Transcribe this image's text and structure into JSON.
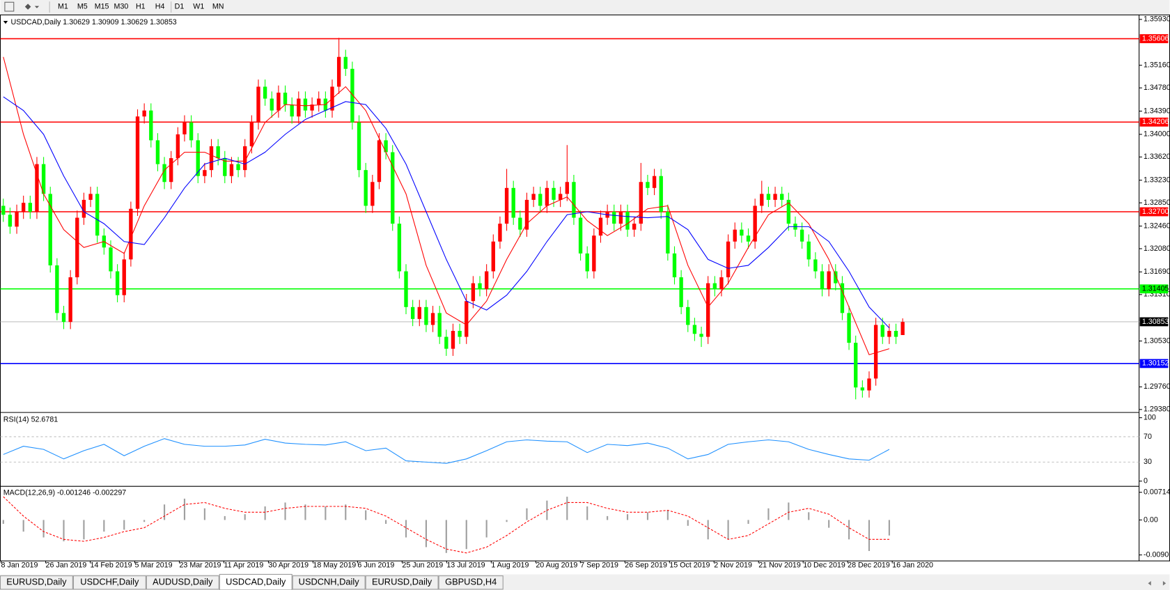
{
  "toolbar": {
    "timeframes": [
      "M1",
      "M5",
      "M15",
      "M30",
      "H1",
      "H4",
      "D1",
      "W1",
      "MN"
    ]
  },
  "chart_data": [
    {
      "type": "candlestick",
      "title": "USDCAD,Daily  1.30629 1.30909 1.30629 1.30853",
      "up_color": "#ff0000",
      "down_color": "#00ff00",
      "ohlc": [
        [
          1.328,
          1.3292,
          1.3253,
          1.3265
        ],
        [
          1.3265,
          1.3277,
          1.3233,
          1.3245
        ],
        [
          1.3245,
          1.3282,
          1.3233,
          1.327
        ],
        [
          1.327,
          1.3297,
          1.3258,
          1.3285
        ],
        [
          1.3285,
          1.3297,
          1.3258,
          1.327
        ],
        [
          1.327,
          1.3362,
          1.3258,
          1.335
        ],
        [
          1.335,
          1.3362,
          1.3288,
          1.33
        ],
        [
          1.33,
          1.3312,
          1.3168,
          1.318
        ],
        [
          1.318,
          1.3192,
          1.3088,
          1.31
        ],
        [
          1.31,
          1.3112,
          1.3073,
          1.3085
        ],
        [
          1.3085,
          1.3172,
          1.3073,
          1.316
        ],
        [
          1.316,
          1.3272,
          1.3148,
          1.326
        ],
        [
          1.326,
          1.3302,
          1.3248,
          1.329
        ],
        [
          1.329,
          1.3312,
          1.3278,
          1.33
        ],
        [
          1.33,
          1.3312,
          1.3218,
          1.323
        ],
        [
          1.323,
          1.3242,
          1.3198,
          1.321
        ],
        [
          1.321,
          1.3222,
          1.3158,
          1.317
        ],
        [
          1.317,
          1.3182,
          1.3118,
          1.313
        ],
        [
          1.313,
          1.3202,
          1.3118,
          1.319
        ],
        [
          1.319,
          1.3287,
          1.3178,
          1.3275
        ],
        [
          1.3275,
          1.3442,
          1.3263,
          1.343
        ],
        [
          1.343,
          1.3452,
          1.3418,
          1.344
        ],
        [
          1.344,
          1.3452,
          1.3378,
          1.339
        ],
        [
          1.339,
          1.3402,
          1.3338,
          1.335
        ],
        [
          1.335,
          1.3362,
          1.3308,
          1.332
        ],
        [
          1.332,
          1.3372,
          1.3308,
          1.336
        ],
        [
          1.336,
          1.3412,
          1.3348,
          1.34
        ],
        [
          1.34,
          1.3432,
          1.3388,
          1.342
        ],
        [
          1.342,
          1.3432,
          1.3378,
          1.339
        ],
        [
          1.339,
          1.3402,
          1.3318,
          1.333
        ],
        [
          1.333,
          1.3352,
          1.3318,
          1.334
        ],
        [
          1.334,
          1.3392,
          1.3328,
          1.338
        ],
        [
          1.338,
          1.3392,
          1.3348,
          1.336
        ],
        [
          1.336,
          1.3372,
          1.3318,
          1.333
        ],
        [
          1.333,
          1.3362,
          1.3318,
          1.335
        ],
        [
          1.335,
          1.3362,
          1.3328,
          1.334
        ],
        [
          1.334,
          1.3392,
          1.3328,
          1.338
        ],
        [
          1.338,
          1.3432,
          1.3368,
          1.342
        ],
        [
          1.342,
          1.3492,
          1.3408,
          1.348
        ],
        [
          1.348,
          1.3492,
          1.3448,
          1.346
        ],
        [
          1.346,
          1.3472,
          1.3428,
          1.344
        ],
        [
          1.344,
          1.3482,
          1.3428,
          1.347
        ],
        [
          1.347,
          1.3482,
          1.3438,
          1.345
        ],
        [
          1.345,
          1.3462,
          1.3418,
          1.343
        ],
        [
          1.343,
          1.3472,
          1.3418,
          1.346
        ],
        [
          1.346,
          1.3472,
          1.3428,
          1.344
        ],
        [
          1.344,
          1.3462,
          1.3428,
          1.345
        ],
        [
          1.345,
          1.3472,
          1.3438,
          1.346
        ],
        [
          1.346,
          1.3472,
          1.3428,
          1.344
        ],
        [
          1.344,
          1.3492,
          1.3428,
          1.348
        ],
        [
          1.348,
          1.3562,
          1.3468,
          1.353
        ],
        [
          1.353,
          1.3542,
          1.3498,
          1.351
        ],
        [
          1.351,
          1.3522,
          1.3408,
          1.342
        ],
        [
          1.342,
          1.3432,
          1.3328,
          1.334
        ],
        [
          1.334,
          1.3352,
          1.3268,
          1.328
        ],
        [
          1.328,
          1.3332,
          1.3268,
          1.332
        ],
        [
          1.332,
          1.3402,
          1.3308,
          1.339
        ],
        [
          1.339,
          1.3402,
          1.3358,
          1.337
        ],
        [
          1.337,
          1.3382,
          1.3238,
          1.325
        ],
        [
          1.325,
          1.3262,
          1.3158,
          1.317
        ],
        [
          1.317,
          1.3182,
          1.3098,
          1.311
        ],
        [
          1.311,
          1.3122,
          1.3078,
          1.309
        ],
        [
          1.309,
          1.3122,
          1.3078,
          1.311
        ],
        [
          1.311,
          1.3122,
          1.3068,
          1.308
        ],
        [
          1.308,
          1.3112,
          1.3068,
          1.31
        ],
        [
          1.31,
          1.3112,
          1.3048,
          1.306
        ],
        [
          1.306,
          1.3072,
          1.3028,
          1.304
        ],
        [
          1.304,
          1.3082,
          1.3028,
          1.307
        ],
        [
          1.307,
          1.3082,
          1.3048,
          1.306
        ],
        [
          1.306,
          1.3132,
          1.3048,
          1.312
        ],
        [
          1.312,
          1.3162,
          1.3108,
          1.315
        ],
        [
          1.315,
          1.3162,
          1.3128,
          1.314
        ],
        [
          1.314,
          1.3182,
          1.3128,
          1.317
        ],
        [
          1.317,
          1.3232,
          1.3158,
          1.322
        ],
        [
          1.322,
          1.3262,
          1.3208,
          1.325
        ],
        [
          1.325,
          1.3342,
          1.3238,
          1.331
        ],
        [
          1.331,
          1.3322,
          1.3248,
          1.326
        ],
        [
          1.326,
          1.3272,
          1.3228,
          1.324
        ],
        [
          1.324,
          1.3302,
          1.3228,
          1.329
        ],
        [
          1.329,
          1.3312,
          1.3278,
          1.33
        ],
        [
          1.33,
          1.3312,
          1.3268,
          1.328
        ],
        [
          1.328,
          1.3322,
          1.3268,
          1.331
        ],
        [
          1.331,
          1.3322,
          1.3278,
          1.329
        ],
        [
          1.329,
          1.3312,
          1.3278,
          1.33
        ],
        [
          1.33,
          1.3382,
          1.3288,
          1.332
        ],
        [
          1.332,
          1.3332,
          1.3248,
          1.326
        ],
        [
          1.326,
          1.3272,
          1.3188,
          1.32
        ],
        [
          1.32,
          1.3212,
          1.3158,
          1.317
        ],
        [
          1.317,
          1.3242,
          1.3158,
          1.323
        ],
        [
          1.323,
          1.3272,
          1.3218,
          1.326
        ],
        [
          1.326,
          1.3282,
          1.3248,
          1.327
        ],
        [
          1.327,
          1.3282,
          1.3238,
          1.325
        ],
        [
          1.325,
          1.3282,
          1.3238,
          1.327
        ],
        [
          1.327,
          1.3282,
          1.3228,
          1.324
        ],
        [
          1.324,
          1.3262,
          1.3228,
          1.325
        ],
        [
          1.325,
          1.3352,
          1.3238,
          1.332
        ],
        [
          1.332,
          1.3332,
          1.3298,
          1.331
        ],
        [
          1.331,
          1.3342,
          1.3298,
          1.333
        ],
        [
          1.333,
          1.3342,
          1.3258,
          1.327
        ],
        [
          1.327,
          1.3282,
          1.3188,
          1.32
        ],
        [
          1.32,
          1.3212,
          1.3148,
          1.316
        ],
        [
          1.316,
          1.3172,
          1.3098,
          1.311
        ],
        [
          1.311,
          1.3122,
          1.3068,
          1.308
        ],
        [
          1.308,
          1.3092,
          1.3053,
          1.3065
        ],
        [
          1.3065,
          1.3077,
          1.3043,
          1.306
        ],
        [
          1.306,
          1.3162,
          1.3048,
          1.315
        ],
        [
          1.315,
          1.3162,
          1.3128,
          1.314
        ],
        [
          1.314,
          1.3172,
          1.3128,
          1.316
        ],
        [
          1.316,
          1.3232,
          1.3148,
          1.322
        ],
        [
          1.322,
          1.3252,
          1.3208,
          1.324
        ],
        [
          1.324,
          1.3252,
          1.3218,
          1.323
        ],
        [
          1.323,
          1.3242,
          1.3208,
          1.322
        ],
        [
          1.322,
          1.3292,
          1.3208,
          1.328
        ],
        [
          1.328,
          1.3322,
          1.3268,
          1.33
        ],
        [
          1.33,
          1.3312,
          1.3278,
          1.329
        ],
        [
          1.329,
          1.3312,
          1.3278,
          1.33
        ],
        [
          1.33,
          1.3312,
          1.3278,
          1.329
        ],
        [
          1.329,
          1.3302,
          1.3238,
          1.325
        ],
        [
          1.325,
          1.3262,
          1.3228,
          1.324
        ],
        [
          1.324,
          1.3252,
          1.3208,
          1.322
        ],
        [
          1.322,
          1.3232,
          1.3178,
          1.319
        ],
        [
          1.319,
          1.3202,
          1.3158,
          1.317
        ],
        [
          1.317,
          1.3182,
          1.3128,
          1.314
        ],
        [
          1.314,
          1.3182,
          1.3128,
          1.317
        ],
        [
          1.317,
          1.3182,
          1.3138,
          1.315
        ],
        [
          1.315,
          1.3162,
          1.3088,
          1.31
        ],
        [
          1.31,
          1.3112,
          1.3038,
          1.305
        ],
        [
          1.305,
          1.3062,
          1.2955,
          1.2975
        ],
        [
          1.2975,
          1.2987,
          1.2958,
          1.297
        ],
        [
          1.297,
          1.3002,
          1.2958,
          1.299
        ],
        [
          1.299,
          1.3092,
          1.2978,
          1.308
        ],
        [
          1.308,
          1.3092,
          1.3048,
          1.306
        ],
        [
          1.306,
          1.3082,
          1.3048,
          1.307
        ],
        [
          1.307,
          1.3082,
          1.3048,
          1.306
        ],
        [
          1.3063,
          1.3091,
          1.3063,
          1.3085
        ]
      ],
      "lines": [
        {
          "color": "#ff0000",
          "values": [
            1.353,
            1.34,
            1.33,
            1.324,
            1.321,
            1.322,
            1.32,
            1.328,
            1.334,
            1.337,
            1.337,
            1.3355,
            1.3355,
            1.342,
            1.345,
            1.3448,
            1.345,
            1.348,
            1.344,
            1.337,
            1.33,
            1.318,
            1.31,
            1.308,
            1.312,
            1.319,
            1.325,
            1.328,
            1.3295,
            1.3255,
            1.323,
            1.325,
            1.3275,
            1.328,
            1.318,
            1.311,
            1.315,
            1.321,
            1.3265,
            1.3285,
            1.325,
            1.319,
            1.311,
            1.303,
            1.304
          ]
        },
        {
          "color": "#0000ff",
          "values": [
            1.3463,
            1.344,
            1.34,
            1.333,
            1.327,
            1.325,
            1.322,
            1.3215,
            1.326,
            1.331,
            1.335,
            1.336,
            1.335,
            1.337,
            1.34,
            1.3425,
            1.344,
            1.3455,
            1.345,
            1.341,
            1.335,
            1.327,
            1.319,
            1.312,
            1.3105,
            1.313,
            1.317,
            1.322,
            1.3265,
            1.327,
            1.3265,
            1.3262,
            1.326,
            1.3262,
            1.324,
            1.319,
            1.3175,
            1.318,
            1.321,
            1.3245,
            1.3245,
            1.322,
            1.317,
            1.311,
            1.3075
          ]
        }
      ],
      "levels": [
        {
          "value": 1.35606,
          "color": "#ff0000"
        },
        {
          "value": 1.34206,
          "color": "#ff0000"
        },
        {
          "value": 1.327,
          "label": "1.32700",
          "color": "#ff0000"
        },
        {
          "value": 1.31405,
          "color": "#00ff00"
        },
        {
          "value": 1.30152,
          "color": "#0000ff"
        }
      ],
      "last_price": {
        "value": 1.30853,
        "color": "#c0c0c0"
      },
      "ylim": [
        1.2938,
        1.3593
      ],
      "yticks": [
        {
          "value": 1.3593,
          "label": "1.35930"
        },
        {
          "value": 1.3516,
          "label": "1.35160"
        },
        {
          "value": 1.3478,
          "label": "1.34780"
        },
        {
          "value": 1.3439,
          "label": "1.34390"
        },
        {
          "value": 1.34,
          "label": "1.34000"
        },
        {
          "value": 1.3362,
          "label": "1.33620"
        },
        {
          "value": 1.3323,
          "label": "1.33230"
        },
        {
          "value": 1.3285,
          "label": "1.32850"
        },
        {
          "value": 1.3246,
          "label": "1.32460"
        },
        {
          "value": 1.3208,
          "label": "1.32080"
        },
        {
          "value": 1.3169,
          "label": "1.31690"
        },
        {
          "value": 1.3131,
          "label": "1.31310"
        },
        {
          "value": 1.3053,
          "label": "1.30530"
        },
        {
          "value": 1.2976,
          "label": "1.29760"
        },
        {
          "value": 1.2938,
          "label": "1.29380"
        }
      ],
      "date_labels": [
        "8 Jan 2019",
        "26 Jan 2019",
        "14 Feb 2019",
        "5 Mar 2019",
        "23 Mar 2019",
        "11 Apr 2019",
        "30 Apr 2019",
        "18 May 2019",
        "6 Jun 2019",
        "25 Jun 2019",
        "13 Jul 2019",
        "1 Aug 2019",
        "20 Aug 2019",
        "7 Sep 2019",
        "26 Sep 2019",
        "15 Oct 2019",
        "2 Nov 2019",
        "21 Nov 2019",
        "10 Dec 2019",
        "28 Dec 2019",
        "16 Jan 2020"
      ]
    },
    {
      "type": "line",
      "title": "RSI(14) 52.6781",
      "color": "#1e90ff",
      "values": [
        42,
        55,
        50,
        35,
        48,
        58,
        40,
        55,
        67,
        58,
        55,
        55,
        57,
        66,
        60,
        58,
        57,
        62,
        48,
        52,
        32,
        30,
        28,
        35,
        48,
        62,
        65,
        63,
        62,
        45,
        58,
        56,
        60,
        52,
        35,
        42,
        58,
        62,
        65,
        62,
        50,
        42,
        35,
        33,
        50
      ],
      "ylim": [
        0,
        100
      ],
      "yticks": [
        100,
        70,
        30,
        0
      ]
    },
    {
      "type": "macd",
      "title": "MACD(12,26,9) -0.001246 -0.002297",
      "hist_color": "#a0a0a0",
      "signal_color": "#ff0000",
      "values": [
        -0.001,
        -0.003,
        -0.0045,
        -0.0055,
        -0.005,
        -0.003,
        -0.0025,
        -0.0005,
        0.004,
        0.0055,
        0.003,
        0.001,
        0.0015,
        0.0035,
        0.0045,
        0.004,
        0.0035,
        0.004,
        0.0025,
        -0.001,
        -0.0045,
        -0.007,
        -0.0085,
        -0.0075,
        -0.0045,
        -0.0005,
        0.003,
        0.005,
        0.006,
        0.0035,
        0.001,
        0.0015,
        0.002,
        0.0025,
        -0.0015,
        -0.005,
        -0.005,
        -0.001,
        0.003,
        0.0045,
        0.002,
        -0.002,
        -0.005,
        -0.008,
        -0.004
      ],
      "signal": [
        0.006,
        0.001,
        -0.003,
        -0.005,
        -0.0055,
        -0.0045,
        -0.003,
        -0.002,
        0.001,
        0.004,
        0.0045,
        0.003,
        0.002,
        0.002,
        0.003,
        0.0035,
        0.0035,
        0.0035,
        0.003,
        0.001,
        -0.002,
        -0.005,
        -0.0075,
        -0.0085,
        -0.007,
        -0.004,
        -0.0005,
        0.0025,
        0.0045,
        0.0045,
        0.003,
        0.002,
        0.002,
        0.0025,
        0.001,
        -0.002,
        -0.005,
        -0.004,
        -0.001,
        0.002,
        0.003,
        0.0015,
        -0.002,
        -0.005,
        -0.005
      ],
      "ylim": [
        -0.009015,
        0.00714
      ],
      "yticks": [
        0.00714,
        {
          "value": 0,
          "label": "0.00"
        },
        -0.009015
      ]
    }
  ],
  "tabs": [
    "EURUSD,Daily",
    "USDCHF,Daily",
    "AUDUSD,Daily",
    "USDCAD,Daily",
    "USDCNH,Daily",
    "EURUSD,Daily",
    "GBPUSD,H4"
  ],
  "active_tab": 3
}
